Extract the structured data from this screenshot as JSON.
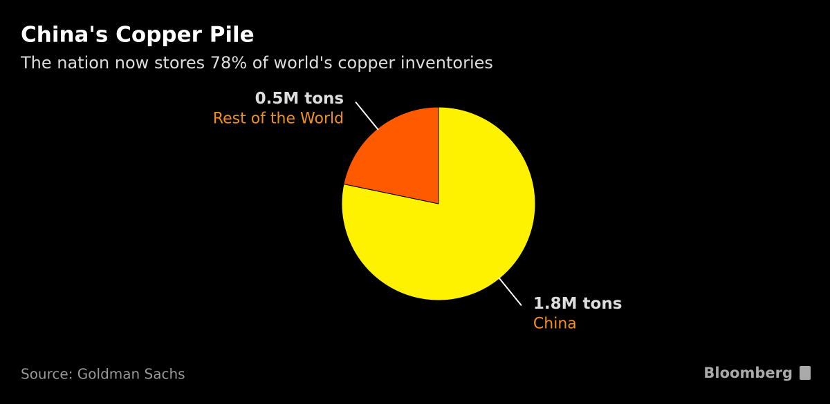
{
  "chart_data": {
    "type": "pie",
    "title": "China's Copper Pile",
    "subtitle": "The nation now stores 78% of world's copper inventories",
    "categories": [
      "China",
      "Rest of the World"
    ],
    "values": [
      1.8,
      0.5
    ],
    "value_labels": [
      "1.8M tons",
      "0.5M tons"
    ],
    "colors": [
      "#fff200",
      "#ff5a00"
    ],
    "source": "Source: Goldman Sachs",
    "logo": "Bloomberg"
  }
}
